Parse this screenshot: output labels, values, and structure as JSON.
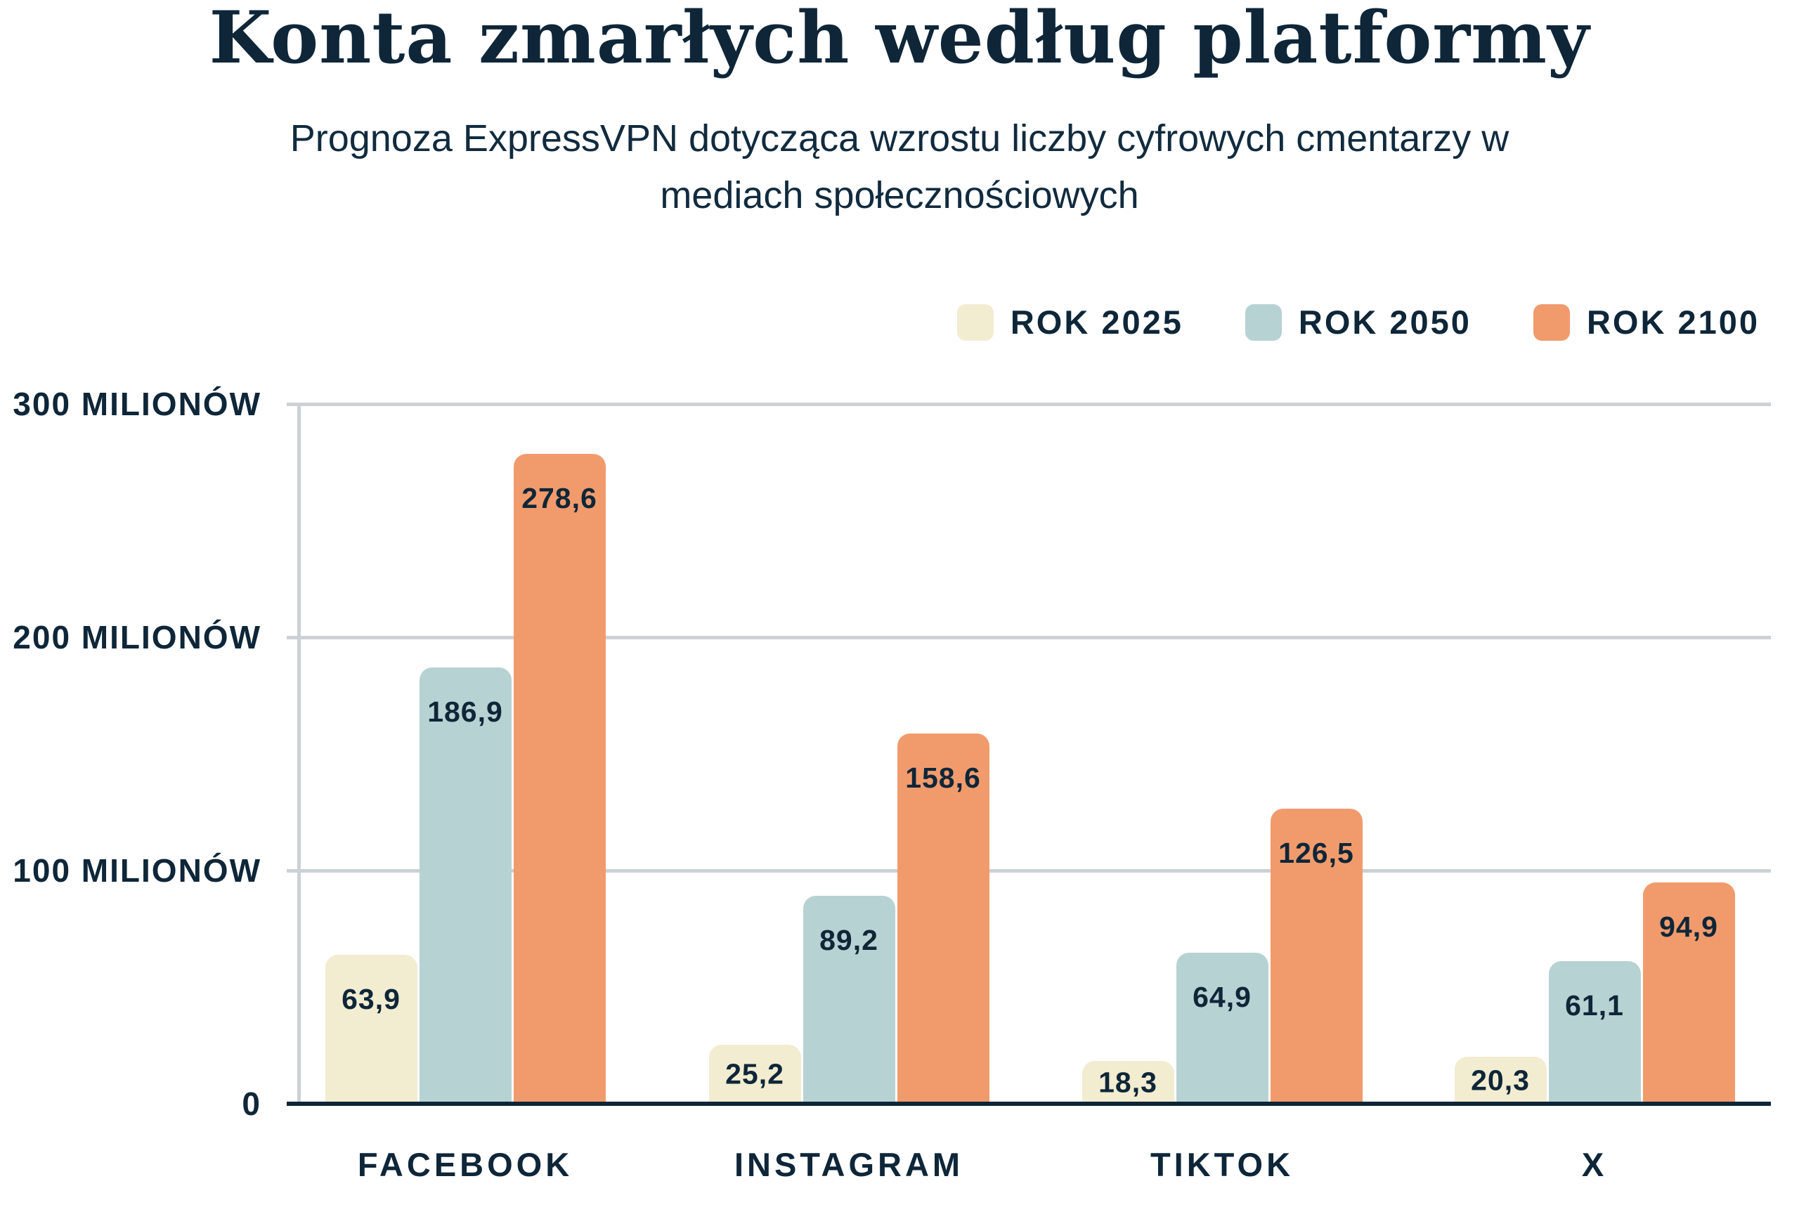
{
  "chart_data": {
    "type": "bar",
    "title": "Konta zmarłych według platformy",
    "subtitle_lines": [
      "Prognoza ExpressVPN dotycząca wzrostu liczby cyfrowych cmentarzy w",
      "mediach społecznościowych"
    ],
    "categories": [
      "FACEBOOK",
      "INSTAGRAM",
      "TIKTOK",
      "X"
    ],
    "series": [
      {
        "name": "ROK 2025",
        "color": "#f2ecd1",
        "values": [
          63.9,
          25.2,
          18.3,
          20.3
        ]
      },
      {
        "name": "ROK 2050",
        "color": "#b7d2d2",
        "values": [
          186.9,
          89.2,
          64.9,
          61.1
        ]
      },
      {
        "name": "ROK 2100",
        "color": "#f19b6d",
        "values": [
          278.6,
          158.6,
          126.5,
          94.9
        ]
      }
    ],
    "value_labels": [
      [
        "63,9",
        "25,2",
        "18,3",
        "20,3"
      ],
      [
        "186,9",
        "89,2",
        "64,9",
        "61,1"
      ],
      [
        "278,6",
        "158,6",
        "126,5",
        "94,9"
      ]
    ],
    "y_ticks": [
      {
        "value": 0,
        "label": "0"
      },
      {
        "value": 100,
        "label": "100 MILIONÓW"
      },
      {
        "value": 200,
        "label": "200 MILIONÓW"
      },
      {
        "value": 300,
        "label": "300 MILIONÓW"
      }
    ],
    "ylim": [
      0,
      300
    ],
    "grid": true,
    "legend_position": "top-right",
    "decimal_separator": ","
  },
  "colors": {
    "text": "#0e2638",
    "gridline": "#ccd1d5",
    "axis_baseline": "#0e2638",
    "background": "#ffffff"
  }
}
